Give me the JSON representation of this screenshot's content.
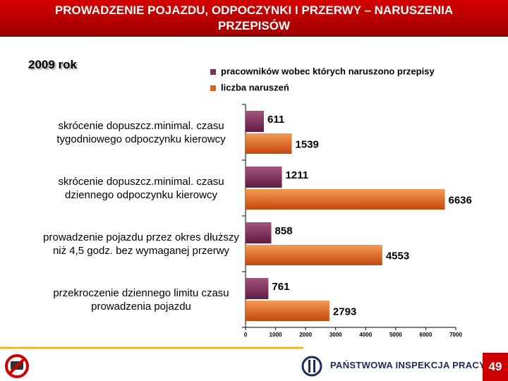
{
  "chart_data": {
    "type": "barh",
    "title": "PROWADZENIE POJAZDU, ODPOCZYNKI I PRZERWY – NARUSZENIA PRZEPISÓW",
    "subtitle": "2009 rok",
    "categories": [
      "skrócenie dopuszcz.minimal. czasu tygodniowego odpoczynku kierowcy",
      "skrócenie dopuszcz.minimal. czasu dziennego odpoczynku kierowcy",
      "prowadzenie pojazdu przez okres dłuższy niż 4,5 godz. bez wymaganej przerwy",
      "przekroczenie dziennego limitu czasu prowadzenia pojazdu"
    ],
    "series": [
      {
        "name": "pracowników wobec których naruszono przepisy",
        "color": "#7b2d5e",
        "values": [
          611,
          1211,
          858,
          761
        ]
      },
      {
        "name": "liczba naruszeń",
        "color": "#e0621c",
        "values": [
          1539,
          6636,
          4553,
          2793
        ]
      }
    ],
    "xlim": [
      0,
      7000
    ],
    "xticks": [
      0,
      1000,
      2000,
      3000,
      4000,
      5000,
      6000,
      7000
    ],
    "legend": "top-right"
  },
  "footer": {
    "organization": "PAŃSTWOWA INSPEKCJA PRACY",
    "page_number": "49"
  }
}
